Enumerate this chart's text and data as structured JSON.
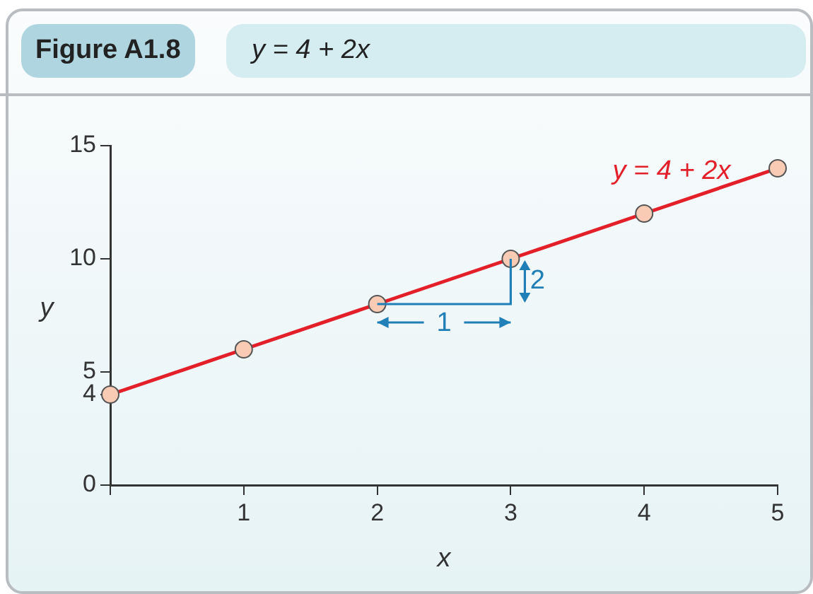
{
  "chart_data": {
    "type": "line",
    "title": "Figure A1.8",
    "subtitle": "y = 4 + 2x",
    "xlabel": "x",
    "ylabel": "y",
    "x": [
      0,
      1,
      2,
      3,
      4,
      5
    ],
    "series": [
      {
        "name": "y = 4 + 2x",
        "color": "#e3202a",
        "values": [
          4,
          6,
          8,
          10,
          12,
          14
        ]
      }
    ],
    "xlim": [
      0,
      5
    ],
    "xticks": [
      {
        "value": 0,
        "label": null
      },
      1,
      2,
      3,
      4,
      5
    ],
    "ylim": [
      0,
      15
    ],
    "yticks": [
      0,
      4,
      5,
      10,
      15
    ],
    "grid": false,
    "legend": false,
    "marker": "circle",
    "line_style": "solid",
    "annotations": [
      {
        "text": "1",
        "x": 2.5,
        "y": 9
      },
      {
        "text": "2",
        "x": 3,
        "y": 10
      }
    ]
  }
}
